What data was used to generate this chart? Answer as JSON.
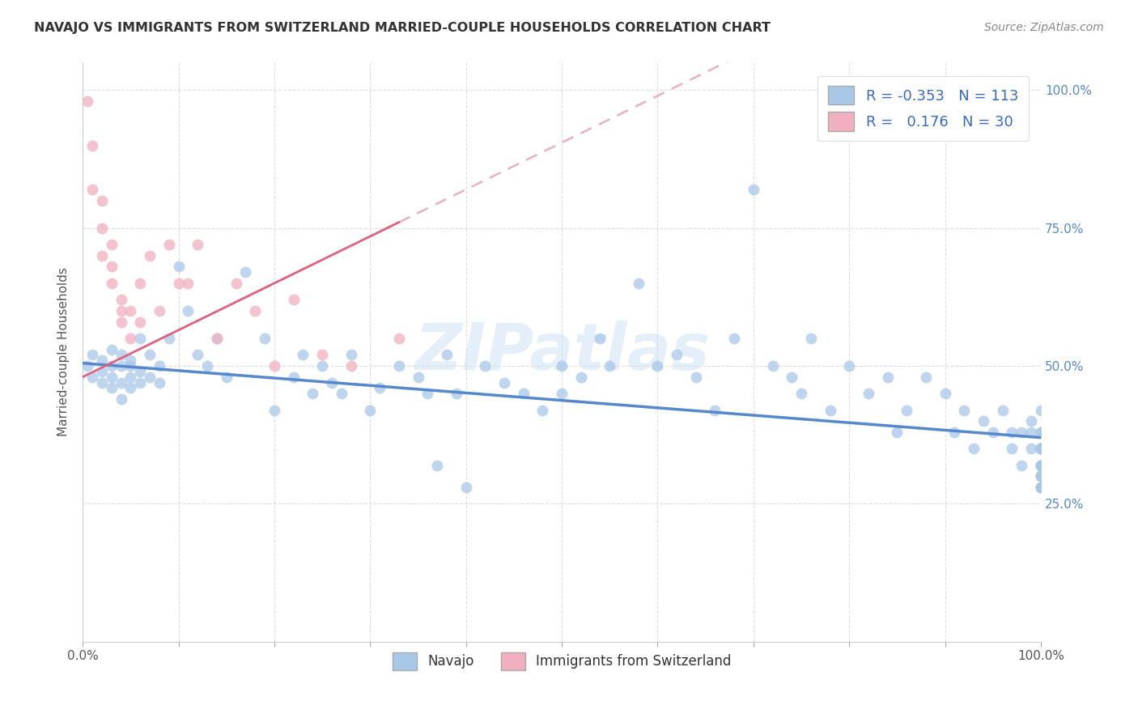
{
  "title": "NAVAJO VS IMMIGRANTS FROM SWITZERLAND MARRIED-COUPLE HOUSEHOLDS CORRELATION CHART",
  "source": "Source: ZipAtlas.com",
  "ylabel": "Married-couple Households",
  "legend_labels": [
    "Navajo",
    "Immigrants from Switzerland"
  ],
  "navajo_R": -0.353,
  "navajo_N": 113,
  "swiss_R": 0.176,
  "swiss_N": 30,
  "navajo_color": "#a8c8e8",
  "navajo_line_color": "#5588cc",
  "swiss_color": "#f0b0c0",
  "swiss_line_color": "#e06080",
  "swiss_dash_color": "#e8b0c0",
  "background_color": "#ffffff",
  "watermark": "ZIPatlas",
  "ytick_positions": [
    0.25,
    0.5,
    0.75,
    1.0
  ],
  "ytick_labels": [
    "25.0%",
    "50.0%",
    "75.0%",
    "100.0%"
  ],
  "navajo_color_right": "#5588cc",
  "navajo_x": [
    0.005,
    0.01,
    0.01,
    0.02,
    0.02,
    0.02,
    0.03,
    0.03,
    0.03,
    0.03,
    0.04,
    0.04,
    0.04,
    0.04,
    0.05,
    0.05,
    0.05,
    0.05,
    0.06,
    0.06,
    0.06,
    0.07,
    0.07,
    0.08,
    0.08,
    0.09,
    0.1,
    0.11,
    0.12,
    0.13,
    0.14,
    0.15,
    0.17,
    0.19,
    0.2,
    0.22,
    0.23,
    0.24,
    0.25,
    0.26,
    0.27,
    0.28,
    0.3,
    0.31,
    0.33,
    0.35,
    0.36,
    0.37,
    0.38,
    0.39,
    0.4,
    0.42,
    0.44,
    0.46,
    0.48,
    0.5,
    0.5,
    0.52,
    0.54,
    0.55,
    0.58,
    0.6,
    0.62,
    0.64,
    0.66,
    0.68,
    0.7,
    0.72,
    0.74,
    0.75,
    0.76,
    0.78,
    0.8,
    0.82,
    0.84,
    0.85,
    0.86,
    0.88,
    0.9,
    0.91,
    0.92,
    0.93,
    0.94,
    0.95,
    0.96,
    0.97,
    0.97,
    0.98,
    0.98,
    0.99,
    0.99,
    0.99,
    1.0,
    1.0,
    1.0,
    1.0,
    1.0,
    1.0,
    1.0,
    1.0,
    1.0,
    1.0,
    1.0,
    1.0,
    1.0,
    1.0,
    1.0,
    1.0,
    1.0,
    1.0,
    1.0,
    1.0,
    1.0
  ],
  "navajo_y": [
    0.5,
    0.48,
    0.52,
    0.49,
    0.51,
    0.47,
    0.5,
    0.48,
    0.46,
    0.53,
    0.5,
    0.47,
    0.52,
    0.44,
    0.5,
    0.48,
    0.51,
    0.46,
    0.55,
    0.49,
    0.47,
    0.52,
    0.48,
    0.5,
    0.47,
    0.55,
    0.68,
    0.6,
    0.52,
    0.5,
    0.55,
    0.48,
    0.67,
    0.55,
    0.42,
    0.48,
    0.52,
    0.45,
    0.5,
    0.47,
    0.45,
    0.52,
    0.42,
    0.46,
    0.5,
    0.48,
    0.45,
    0.32,
    0.52,
    0.45,
    0.28,
    0.5,
    0.47,
    0.45,
    0.42,
    0.5,
    0.45,
    0.48,
    0.55,
    0.5,
    0.65,
    0.5,
    0.52,
    0.48,
    0.42,
    0.55,
    0.82,
    0.5,
    0.48,
    0.45,
    0.55,
    0.42,
    0.5,
    0.45,
    0.48,
    0.38,
    0.42,
    0.48,
    0.45,
    0.38,
    0.42,
    0.35,
    0.4,
    0.38,
    0.42,
    0.35,
    0.38,
    0.32,
    0.38,
    0.35,
    0.4,
    0.38,
    0.42,
    0.38,
    0.35,
    0.32,
    0.3,
    0.35,
    0.32,
    0.28,
    0.35,
    0.32,
    0.38,
    0.35,
    0.3,
    0.32,
    0.35,
    0.3,
    0.28,
    0.32,
    0.35,
    0.3,
    0.28
  ],
  "swiss_x": [
    0.005,
    0.01,
    0.01,
    0.02,
    0.02,
    0.02,
    0.03,
    0.03,
    0.03,
    0.04,
    0.04,
    0.04,
    0.05,
    0.05,
    0.06,
    0.06,
    0.07,
    0.08,
    0.09,
    0.1,
    0.11,
    0.12,
    0.14,
    0.16,
    0.18,
    0.2,
    0.22,
    0.25,
    0.28,
    0.33
  ],
  "swiss_y": [
    0.98,
    0.9,
    0.82,
    0.8,
    0.75,
    0.7,
    0.72,
    0.68,
    0.65,
    0.62,
    0.6,
    0.58,
    0.6,
    0.55,
    0.58,
    0.65,
    0.7,
    0.6,
    0.72,
    0.65,
    0.65,
    0.72,
    0.55,
    0.65,
    0.6,
    0.5,
    0.62,
    0.52,
    0.5,
    0.55
  ]
}
